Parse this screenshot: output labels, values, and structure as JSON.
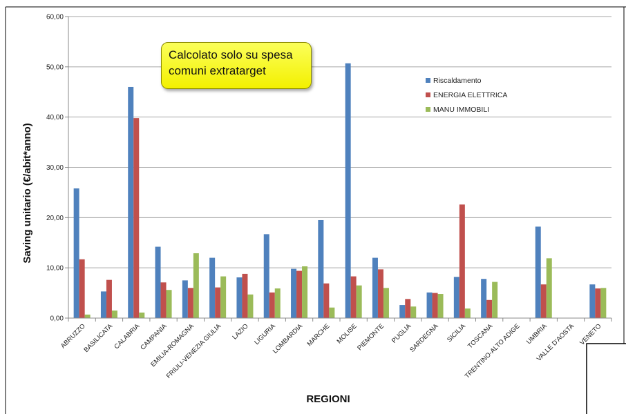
{
  "chart_data": {
    "type": "bar",
    "title": "",
    "xlabel": "REGIONI",
    "ylabel": "Saving unitario (€/abit*anno)",
    "ylim": [
      0,
      60
    ],
    "yticks": [
      "0,00",
      "10,00",
      "20,00",
      "30,00",
      "40,00",
      "50,00",
      "60,00"
    ],
    "grid": true,
    "legend_position": "top-right",
    "categories": [
      "ABRUZZO",
      "BASILICATA",
      "CALABRIA",
      "CAMPANIA",
      "EMILIA-ROMAGNA",
      "FRIULI-VENEZIA GIULIA",
      "LAZIO",
      "LIGURIA",
      "LOMBARDIA",
      "MARCHE",
      "MOLISE",
      "PIEMONTE",
      "PUGLIA",
      "SARDEGNA",
      "SICILIA",
      "TOSCANA",
      "TRENTINO-ALTO ADIGE",
      "UMBRIA",
      "VALLE D'AOSTA",
      "VENETO"
    ],
    "series": [
      {
        "name": "Riscaldamento",
        "color": "#4f81bd",
        "values": [
          25.8,
          5.3,
          46.0,
          14.2,
          7.5,
          12.0,
          8.1,
          16.7,
          9.8,
          19.5,
          50.7,
          12.0,
          2.6,
          5.1,
          8.2,
          7.8,
          0,
          18.2,
          0,
          6.7
        ]
      },
      {
        "name": "ENERGIA ELETTRICA",
        "color": "#c0504d",
        "values": [
          11.7,
          7.6,
          39.8,
          7.1,
          6.0,
          6.1,
          8.8,
          5.1,
          9.4,
          6.9,
          8.3,
          9.7,
          3.8,
          5.0,
          22.6,
          3.6,
          0,
          6.7,
          0,
          5.9
        ]
      },
      {
        "name": "MANU IMMOBILI",
        "color": "#9bbb59",
        "values": [
          0.7,
          1.5,
          1.1,
          5.6,
          12.9,
          8.3,
          4.7,
          5.9,
          10.3,
          2.1,
          6.5,
          6.0,
          2.3,
          4.8,
          1.9,
          7.2,
          0,
          11.9,
          0,
          6.0
        ]
      }
    ],
    "annotation": [
      "Calcolato solo su spesa",
      "comuni extratarget"
    ]
  }
}
